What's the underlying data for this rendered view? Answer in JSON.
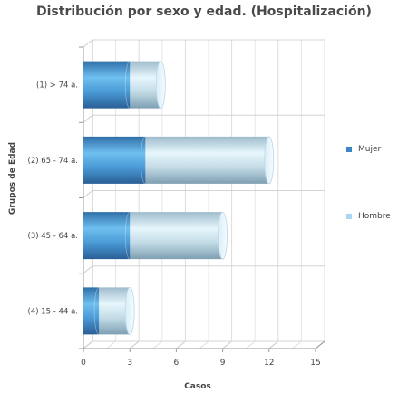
{
  "chart_data": {
    "type": "bar",
    "orientation": "horizontal",
    "style": "3d-cylinder-stacked",
    "title": "Distribución por sexo y edad. (Hospitalización)",
    "xlabel": "Casos",
    "ylabel": "Grupos de Edad",
    "categories": [
      "(1) > 74 a.",
      "(2) 65 - 74 a.",
      "(3) 45 - 64 a.",
      "(4) 15 - 44 a."
    ],
    "series": [
      {
        "name": "Mujer",
        "values": [
          3,
          4,
          3,
          1
        ],
        "color": "#3d85c6"
      },
      {
        "name": "Hombre",
        "values": [
          2,
          8,
          6,
          2
        ],
        "color": "#a9d7f2"
      }
    ],
    "xlim": [
      0,
      15
    ],
    "xticks": [
      0,
      3,
      6,
      9,
      12,
      15
    ],
    "grid": true,
    "legend_position": "right"
  }
}
